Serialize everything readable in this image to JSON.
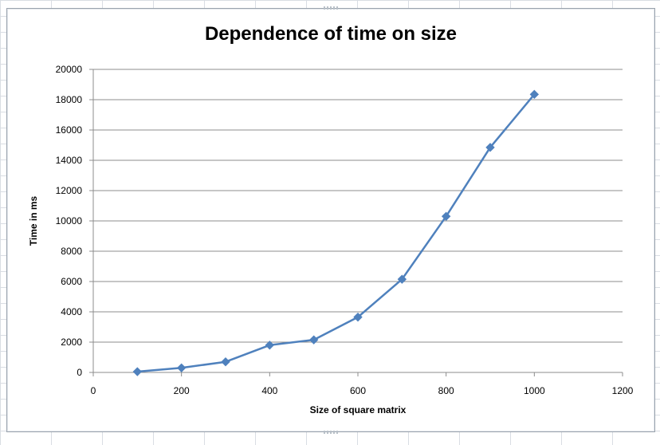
{
  "chart_data": {
    "type": "line",
    "title": "Dependence of time on size",
    "xlabel": "Size of square matrix",
    "ylabel": "Time in ms",
    "xlim": [
      0,
      1200
    ],
    "ylim": [
      0,
      20000
    ],
    "xticks": [
      0,
      200,
      400,
      600,
      800,
      1000,
      1200
    ],
    "yticks": [
      0,
      2000,
      4000,
      6000,
      8000,
      10000,
      12000,
      14000,
      16000,
      18000,
      20000
    ],
    "grid": "horizontal major gridlines",
    "legend": "none",
    "series": [
      {
        "color": "#4f81bd",
        "marker": "diamond",
        "x": [
          100,
          200,
          300,
          400,
          500,
          600,
          700,
          800,
          900,
          1000
        ],
        "y": [
          50,
          300,
          700,
          1800,
          2150,
          3650,
          6150,
          10300,
          14850,
          18350
        ]
      }
    ]
  }
}
